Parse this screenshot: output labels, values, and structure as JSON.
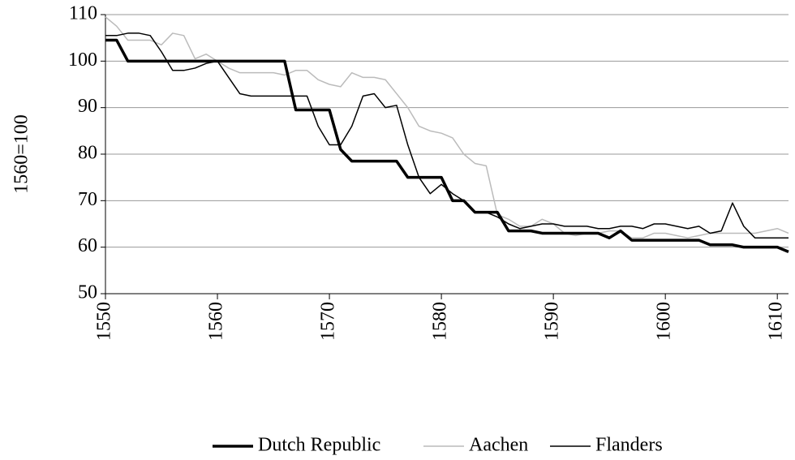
{
  "chart_data": {
    "type": "line",
    "ylabel": "1560=100",
    "x": [
      1550,
      1551,
      1552,
      1553,
      1554,
      1555,
      1556,
      1557,
      1558,
      1559,
      1560,
      1561,
      1562,
      1563,
      1564,
      1565,
      1566,
      1567,
      1568,
      1569,
      1570,
      1571,
      1572,
      1573,
      1574,
      1575,
      1576,
      1577,
      1578,
      1579,
      1580,
      1581,
      1582,
      1583,
      1584,
      1585,
      1586,
      1587,
      1588,
      1589,
      1590,
      1591,
      1592,
      1593,
      1594,
      1595,
      1596,
      1597,
      1598,
      1599,
      1600,
      1601,
      1602,
      1603,
      1604,
      1605,
      1606,
      1607,
      1608,
      1609,
      1610,
      1611
    ],
    "series": [
      {
        "name": "Dutch Republic",
        "color": "#000000",
        "linewidth": 3.5,
        "values": [
          104.5,
          104.5,
          100,
          100,
          100,
          100,
          100,
          100,
          100,
          100,
          100,
          100,
          100,
          100,
          100,
          100,
          100,
          89.5,
          89.5,
          89.5,
          89.5,
          81,
          78.5,
          78.5,
          78.5,
          78.5,
          78.5,
          75,
          75,
          75,
          75,
          70,
          70,
          67.5,
          67.5,
          67.5,
          63.5,
          63.5,
          63.5,
          63,
          63,
          63,
          63,
          63,
          63,
          62,
          63.5,
          61.5,
          61.5,
          61.5,
          61.5,
          61.5,
          61.5,
          61.5,
          60.5,
          60.5,
          60.5,
          60,
          60,
          60,
          60,
          59
        ]
      },
      {
        "name": "Aachen",
        "color": "#bbbbbb",
        "linewidth": 1.5,
        "values": [
          109.5,
          107.5,
          104.5,
          104.5,
          104.5,
          103.5,
          106,
          105.5,
          100.5,
          101.5,
          100,
          98.5,
          97.5,
          97.5,
          97.5,
          97.5,
          97,
          98,
          98,
          96,
          95,
          94.5,
          97.5,
          96.5,
          96.5,
          96,
          93,
          90,
          86,
          85,
          84.5,
          83.5,
          80,
          78,
          77.5,
          67,
          66,
          64.5,
          64.5,
          66,
          65,
          63,
          62.5,
          63,
          63,
          63.5,
          63.5,
          62,
          62,
          63,
          63,
          62.5,
          62,
          62.5,
          63,
          63,
          63,
          63,
          63,
          63.5,
          64,
          63
        ]
      },
      {
        "name": "Flanders",
        "color": "#000000",
        "linewidth": 1.5,
        "values": [
          105.5,
          105.5,
          106,
          106,
          105.5,
          102,
          98,
          98,
          98.5,
          99.5,
          100,
          96.5,
          93,
          92.5,
          92.5,
          92.5,
          92.5,
          92.5,
          92.5,
          86,
          82,
          82,
          86,
          92.5,
          93,
          90,
          90.5,
          82,
          75,
          71.5,
          73.5,
          71.5,
          70,
          67.5,
          67.5,
          66.5,
          65,
          64,
          64.5,
          65,
          65,
          64.5,
          64.5,
          64.5,
          64,
          64,
          64.5,
          64.5,
          64,
          65,
          65,
          64.5,
          64,
          64.5,
          63,
          63.5,
          69.5,
          64.5,
          62,
          62,
          62,
          62
        ]
      }
    ],
    "xlim": [
      1550,
      1611
    ],
    "xticks": [
      1550,
      1560,
      1570,
      1580,
      1590,
      1600,
      1610
    ],
    "ylim": [
      50,
      110
    ],
    "yticks": [
      50,
      60,
      70,
      80,
      90,
      100,
      110
    ],
    "grid": true,
    "legend": "bottom"
  }
}
